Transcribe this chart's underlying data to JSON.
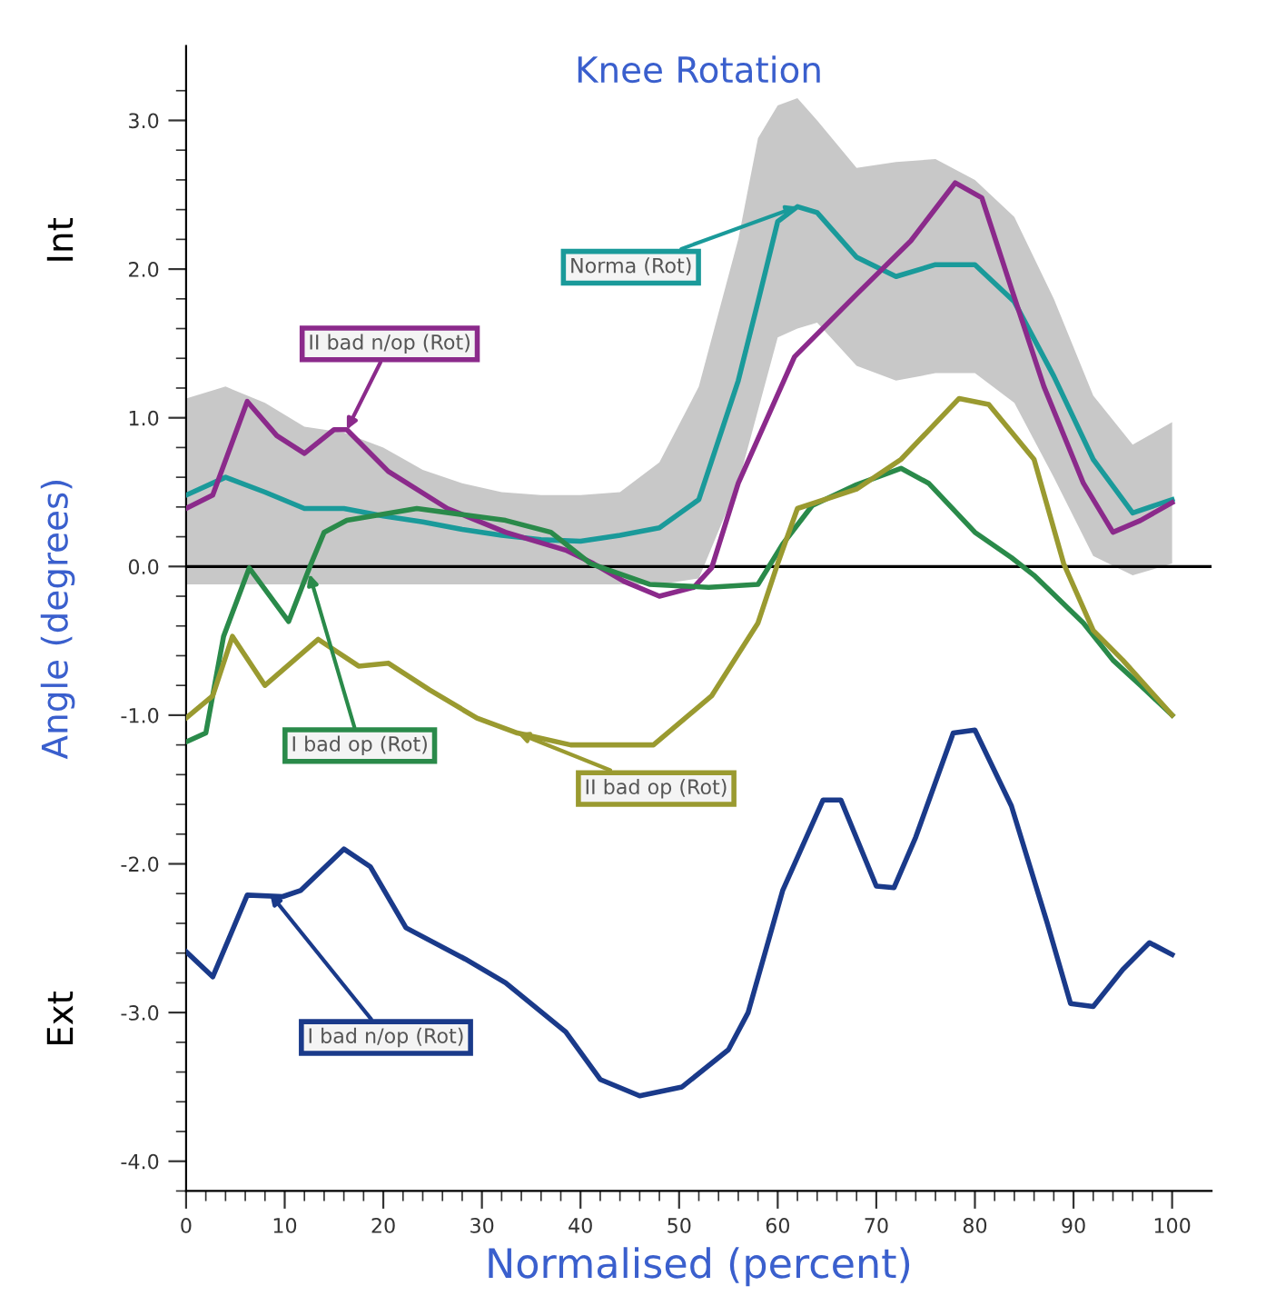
{
  "chart_data": {
    "type": "line",
    "title": "Knee Rotation",
    "xlabel": "Normalised (percent)",
    "ylabel": "Angle (degrees)",
    "xlim": [
      0,
      104
    ],
    "ylim": [
      -4.2,
      3.5
    ],
    "xticks": [
      0,
      10,
      20,
      30,
      40,
      50,
      60,
      70,
      80,
      90,
      100
    ],
    "yticks": [
      {
        "value": -4,
        "label": "-4.0"
      },
      {
        "value": -3,
        "label": "-3.0"
      },
      {
        "value": -2,
        "label": "-2.0"
      },
      {
        "value": -1,
        "label": "-1.0"
      },
      {
        "value": 0,
        "label": "0.0"
      },
      {
        "value": 1,
        "label": "1.0"
      },
      {
        "value": 2,
        "label": "2.0"
      },
      {
        "value": 3,
        "label": "3.0"
      }
    ],
    "grid": false,
    "legend": false,
    "marker": "none",
    "line_style": "solid",
    "ref_lines": [
      {
        "axis": "y",
        "value": 0,
        "color": "#000000"
      }
    ],
    "series": [
      {
        "color": "#1a9a9a",
        "x": [
          0,
          4,
          8,
          12,
          16,
          20,
          24,
          28,
          32,
          36,
          40,
          44,
          48,
          52,
          56,
          58,
          60,
          62,
          64,
          68,
          72,
          76,
          80,
          84,
          88,
          92,
          96,
          100
        ],
        "values": [
          0.48,
          0.6,
          0.5,
          0.39,
          0.39,
          0.34,
          0.3,
          0.25,
          0.21,
          0.18,
          0.17,
          0.21,
          0.26,
          0.45,
          1.25,
          1.78,
          2.32,
          2.42,
          2.38,
          2.08,
          1.95,
          2.03,
          2.03,
          1.78,
          1.28,
          0.72,
          0.36,
          0.45
        ],
        "upper": [
          1.13,
          1.21,
          1.1,
          0.94,
          0.9,
          0.8,
          0.65,
          0.56,
          0.5,
          0.48,
          0.48,
          0.5,
          0.7,
          1.21,
          2.2,
          2.88,
          3.1,
          3.15,
          3.0,
          2.68,
          2.72,
          2.74,
          2.6,
          2.35,
          1.8,
          1.15,
          0.82,
          0.97
        ],
        "lower": [
          -0.12,
          -0.12,
          -0.12,
          -0.12,
          -0.12,
          -0.12,
          -0.12,
          -0.12,
          -0.12,
          -0.12,
          -0.12,
          -0.12,
          -0.12,
          -0.08,
          0.56,
          1.05,
          1.54,
          1.6,
          1.64,
          1.35,
          1.25,
          1.3,
          1.3,
          1.1,
          0.6,
          0.07,
          -0.06,
          0.02
        ]
      },
      {
        "color": "#8b2a8b",
        "x": [
          0,
          2.7,
          6.2,
          9.2,
          12,
          15,
          16.3,
          20.5,
          26.5,
          32.4,
          38.5,
          41.3,
          44.4,
          48,
          51.5,
          53.3,
          56,
          61.7,
          68,
          73.5,
          78,
          80.7,
          83.7,
          87,
          91,
          94,
          96.8,
          100
        ],
        "values": [
          0.39,
          0.48,
          1.11,
          0.88,
          0.76,
          0.92,
          0.92,
          0.64,
          0.39,
          0.23,
          0.11,
          0.02,
          -0.1,
          -0.2,
          -0.14,
          -0.01,
          0.56,
          1.41,
          1.83,
          2.19,
          2.58,
          2.48,
          1.87,
          1.21,
          0.56,
          0.23,
          0.31,
          0.43
        ]
      },
      {
        "color": "#2a8a4a",
        "x": [
          0,
          2,
          3.8,
          6.4,
          10.4,
          12.5,
          14,
          16.3,
          23.4,
          32.4,
          37,
          41,
          47,
          53,
          58,
          60.5,
          63.5,
          68,
          72.5,
          75.3,
          80,
          83.7,
          86,
          91,
          94,
          96.8,
          100
        ],
        "values": [
          -1.18,
          -1.12,
          -0.47,
          -0.01,
          -0.37,
          -0.01,
          0.23,
          0.31,
          0.39,
          0.31,
          0.23,
          0.02,
          -0.12,
          -0.14,
          -0.12,
          0.15,
          0.41,
          0.55,
          0.66,
          0.56,
          0.23,
          0.06,
          -0.06,
          -0.38,
          -0.63,
          -0.8,
          -1.0
        ]
      },
      {
        "color": "#9a9a30",
        "x": [
          0,
          2.7,
          4.7,
          8,
          13.4,
          17.5,
          20.5,
          24.7,
          29.5,
          33.6,
          39,
          47.4,
          53.3,
          58,
          60,
          62,
          68,
          72.5,
          78.4,
          81.4,
          86,
          89,
          92,
          95,
          100
        ],
        "values": [
          -1.02,
          -0.87,
          -0.47,
          -0.8,
          -0.49,
          -0.67,
          -0.65,
          -0.83,
          -1.02,
          -1.12,
          -1.2,
          -1.2,
          -0.87,
          -0.38,
          0.02,
          0.39,
          0.52,
          0.72,
          1.13,
          1.09,
          0.72,
          0.02,
          -0.43,
          -0.63,
          -1.0
        ]
      },
      {
        "color": "#1a3a8a",
        "x": [
          0,
          2.7,
          6.2,
          9.8,
          11.6,
          16,
          18.7,
          22.3,
          28.3,
          32.4,
          38.5,
          42,
          46,
          50.3,
          55,
          57,
          60.5,
          64.6,
          66.4,
          70,
          71.8,
          74,
          77.8,
          80,
          83.7,
          87.3,
          89.7,
          92,
          95,
          97.7,
          100
        ],
        "values": [
          -2.59,
          -2.76,
          -2.21,
          -2.22,
          -2.18,
          -1.9,
          -2.02,
          -2.43,
          -2.64,
          -2.8,
          -3.13,
          -3.45,
          -3.56,
          -3.5,
          -3.25,
          -3.0,
          -2.18,
          -1.57,
          -1.57,
          -2.15,
          -2.16,
          -1.82,
          -1.12,
          -1.1,
          -1.61,
          -2.39,
          -2.94,
          -2.96,
          -2.71,
          -2.53,
          -2.61
        ]
      }
    ],
    "annotations": [
      {
        "text": "Norma (Rot)",
        "x": 62,
        "y": 2.42
      },
      {
        "text": "II bad n/op (Rot)",
        "x": 16.3,
        "y": 0.92
      },
      {
        "text": "I bad op (Rot)",
        "x": 12.5,
        "y": -0.05
      },
      {
        "text": "II bad op (Rot)",
        "x": 33.6,
        "y": -1.12
      },
      {
        "text": "I bad n/op (Rot)",
        "x": 8.5,
        "y": -2.2
      },
      "Int",
      "Ext"
    ]
  }
}
